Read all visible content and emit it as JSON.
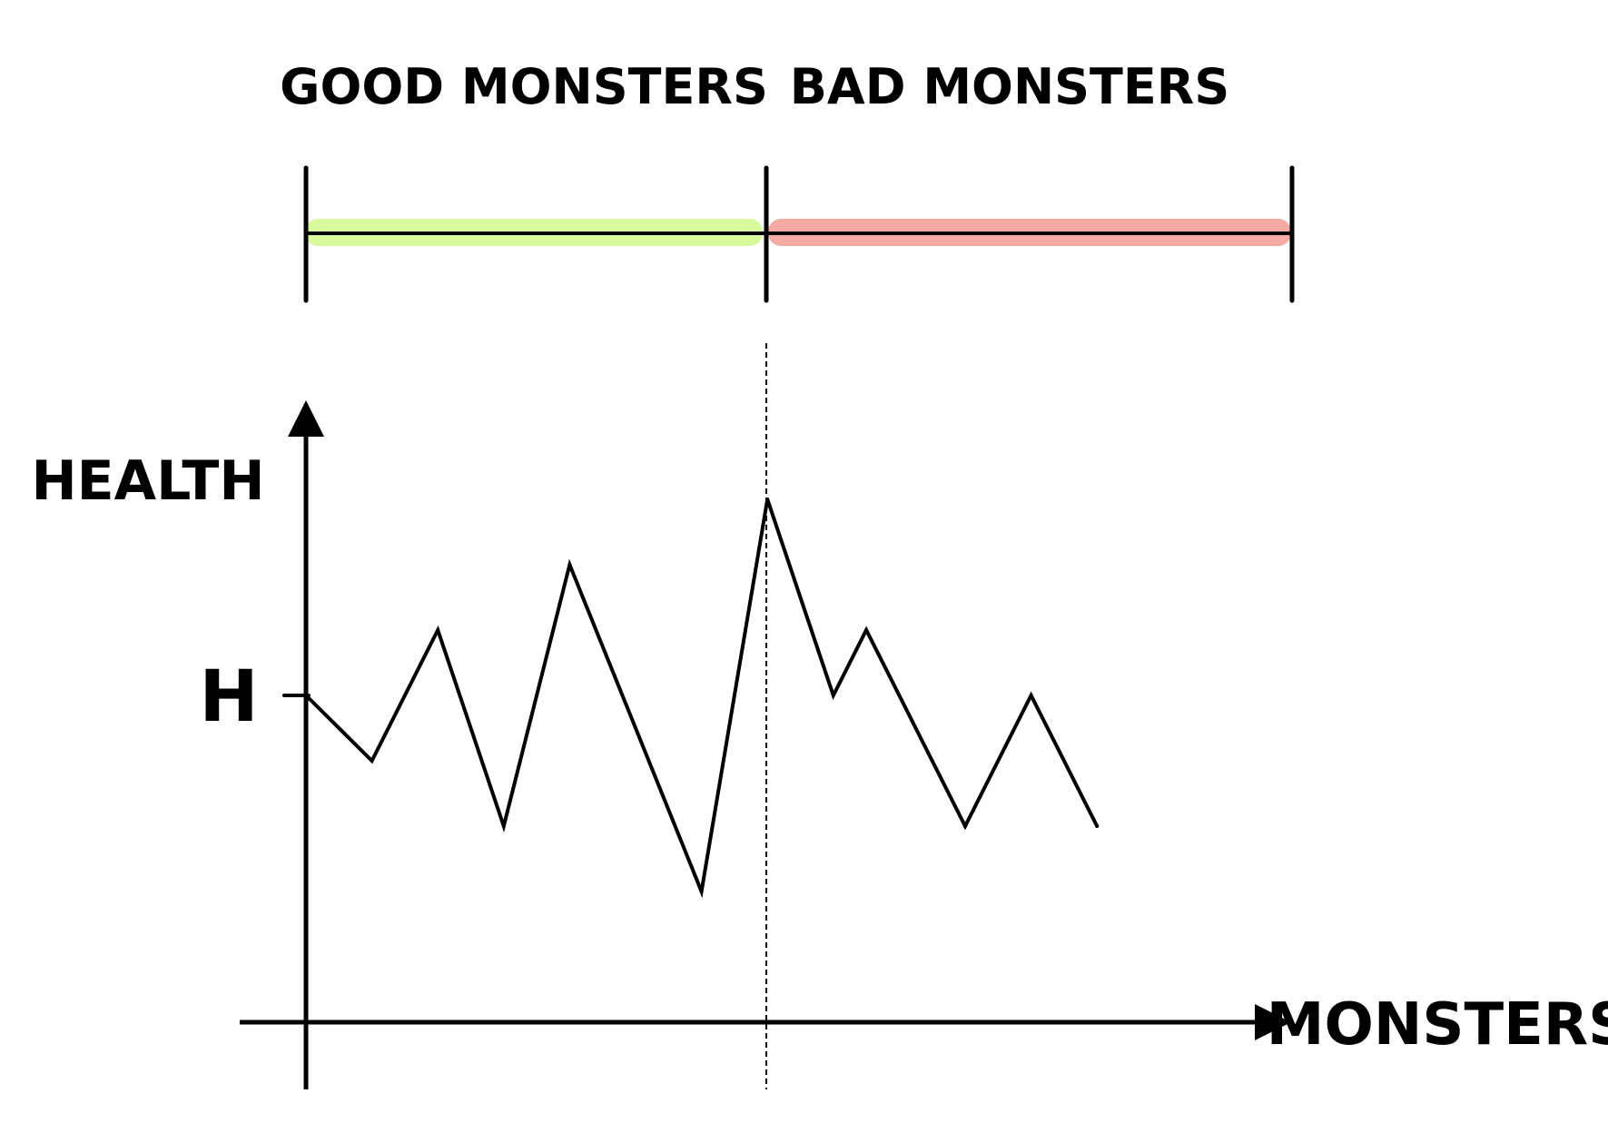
{
  "labels": {
    "good_range": "GOOD MONSTERS",
    "bad_range": "BAD MONSTERS",
    "y_axis": "HEALTH",
    "x_axis": "MONSTERS",
    "threshold_tick": "H"
  },
  "colors": {
    "good_band": "#d9f99d",
    "bad_band": "#f5aaa4",
    "ink": "#000000"
  },
  "chart_data": {
    "type": "line",
    "xlabel": "MONSTERS",
    "ylabel": "HEALTH",
    "y_ticks": [
      "H"
    ],
    "grid": false,
    "series": [
      {
        "values": [
          [
            0,
            0
          ],
          [
            1,
            -1
          ],
          [
            2,
            1
          ],
          [
            3,
            -2
          ],
          [
            4,
            2
          ],
          [
            6,
            -3
          ],
          [
            7,
            3
          ],
          [
            8,
            0
          ],
          [
            8.5,
            1
          ],
          [
            10,
            -2
          ],
          [
            11,
            0
          ],
          [
            12,
            -2
          ]
        ]
      }
    ],
    "regions": [
      {
        "label": "GOOD MONSTERS",
        "x_range": [
          0,
          7
        ],
        "color": "#d9f99d"
      },
      {
        "label": "BAD MONSTERS",
        "x_range": [
          7,
          15
        ],
        "color": "#f5aaa4"
      }
    ],
    "divider_x": 7,
    "threshold_y": 0,
    "xlim": [
      -1,
      15.5
    ],
    "ylim": [
      -5,
      5
    ]
  }
}
